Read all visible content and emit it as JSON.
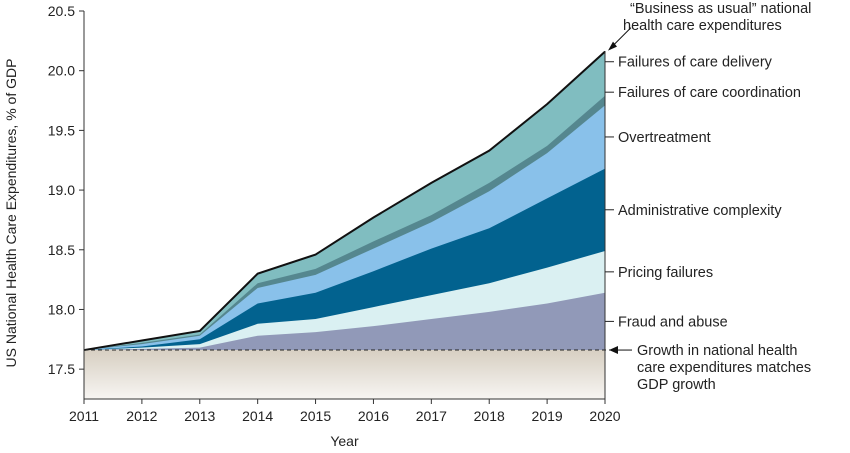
{
  "chart_data": {
    "type": "area",
    "xlabel": "Year",
    "ylabel": "US National Health Care Expenditures, % of GDP",
    "x": [
      2011,
      2012,
      2013,
      2014,
      2015,
      2016,
      2017,
      2018,
      2019,
      2020
    ],
    "xlim": [
      2011,
      2020
    ],
    "ylim": [
      17.25,
      20.5
    ],
    "yticks": [
      "17.5",
      "18.0",
      "18.5",
      "19.0",
      "19.5",
      "20.0",
      "20.5"
    ],
    "xticks": [
      "2011",
      "2012",
      "2013",
      "2014",
      "2015",
      "2016",
      "2017",
      "2018",
      "2019",
      "2020"
    ],
    "grid": false,
    "baseline": {
      "name": "Growth in national health care expenditures matches GDP growth",
      "value": 17.66,
      "style": "dashed",
      "fill_color": "#ddd6cb"
    },
    "series": [
      {
        "name": "Fraud and abuse",
        "color": "#9199b8",
        "values": [
          17.66,
          17.67,
          17.68,
          17.78,
          17.81,
          17.86,
          17.92,
          17.98,
          18.05,
          18.14
        ]
      },
      {
        "name": "Pricing failures",
        "color": "#daf0f2",
        "values": [
          17.66,
          17.68,
          17.71,
          17.88,
          17.92,
          18.02,
          18.12,
          18.22,
          18.35,
          18.49
        ]
      },
      {
        "name": "Administrative complexity",
        "color": "#02628f",
        "values": [
          17.66,
          17.69,
          17.75,
          18.05,
          18.14,
          18.32,
          18.51,
          18.68,
          18.93,
          19.18
        ]
      },
      {
        "name": "Overtreatment",
        "color": "#89c1ea",
        "values": [
          17.66,
          17.71,
          17.78,
          18.18,
          18.29,
          18.51,
          18.73,
          18.99,
          19.31,
          19.71
        ]
      },
      {
        "name": "Failures of care coordination",
        "color": "#55878f",
        "values": [
          17.66,
          17.72,
          17.79,
          18.22,
          18.34,
          18.57,
          18.79,
          19.06,
          19.37,
          19.79
        ]
      },
      {
        "name": "Failures of care delivery",
        "color": "#80bdc0",
        "values": [
          17.66,
          17.74,
          17.82,
          18.3,
          18.46,
          18.77,
          19.06,
          19.33,
          19.72,
          20.16
        ]
      }
    ],
    "total": {
      "name": "“Business as usual” national health care expenditures",
      "values": [
        17.66,
        17.74,
        17.82,
        18.3,
        18.46,
        18.77,
        19.06,
        19.33,
        19.72,
        20.16
      ]
    },
    "annotations": {
      "business_as_usual": [
        "“Business as usual” national",
        "health care expenditures"
      ],
      "baseline": [
        "Growth in national health",
        "care expenditures matches",
        "GDP growth"
      ]
    }
  }
}
